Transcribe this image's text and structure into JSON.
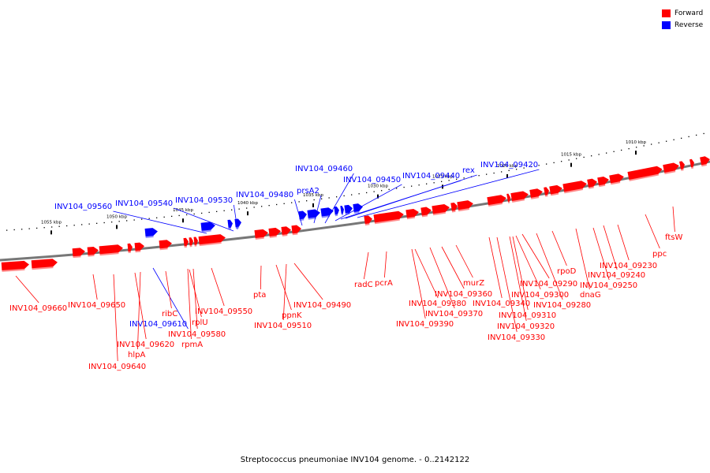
{
  "legend": [
    {
      "label": "Forward",
      "color": "#ff0000"
    },
    {
      "label": "Reverse",
      "color": "#0000ff"
    }
  ],
  "caption": "Streptococcus pneumoniae INV104 genome. - 0..2142122",
  "colors": {
    "forward": "#ff0000",
    "reverse": "#0000ff",
    "backbone": "#777777"
  },
  "scale_ticks": [
    "1055 kbp",
    "1050 kbp",
    "1045 kbp",
    "1040 kbp",
    "1035 kbp",
    "1030 kbp",
    "1025 kbp",
    "1020 kbp",
    "1015 kbp",
    "1010 kbp"
  ],
  "genes": [
    {
      "label": "INV104_09660",
      "strand": "forward"
    },
    {
      "label": "INV104_09650",
      "strand": "forward"
    },
    {
      "label": "INV104_09640",
      "strand": "forward"
    },
    {
      "label": "INV104_09620",
      "strand": "forward"
    },
    {
      "label": "hlpA",
      "strand": "forward"
    },
    {
      "label": "INV104_09610",
      "strand": "reverse"
    },
    {
      "label": "ribC",
      "strand": "forward"
    },
    {
      "label": "rplU",
      "strand": "forward"
    },
    {
      "label": "INV104_09580",
      "strand": "forward"
    },
    {
      "label": "rpmA",
      "strand": "forward"
    },
    {
      "label": "INV104_09550",
      "strand": "forward"
    },
    {
      "label": "pta",
      "strand": "forward"
    },
    {
      "label": "ppnK",
      "strand": "forward"
    },
    {
      "label": "INV104_09510",
      "strand": "forward"
    },
    {
      "label": "INV104_09490",
      "strand": "forward"
    },
    {
      "label": "radC",
      "strand": "forward"
    },
    {
      "label": "pcrA",
      "strand": "forward"
    },
    {
      "label": "INV104_09380",
      "strand": "forward"
    },
    {
      "label": "INV104_09390",
      "strand": "forward"
    },
    {
      "label": "INV104_09370",
      "strand": "forward"
    },
    {
      "label": "INV104_09360",
      "strand": "forward"
    },
    {
      "label": "murZ",
      "strand": "forward"
    },
    {
      "label": "INV104_09340",
      "strand": "forward"
    },
    {
      "label": "INV104_09330",
      "strand": "forward"
    },
    {
      "label": "INV104_09320",
      "strand": "forward"
    },
    {
      "label": "INV104_09310",
      "strand": "forward"
    },
    {
      "label": "INV104_09300",
      "strand": "forward"
    },
    {
      "label": "INV104_09290",
      "strand": "forward"
    },
    {
      "label": "INV104_09280",
      "strand": "forward"
    },
    {
      "label": "rpoD",
      "strand": "forward"
    },
    {
      "label": "dnaG",
      "strand": "forward"
    },
    {
      "label": "INV104_09250",
      "strand": "forward"
    },
    {
      "label": "INV104_09240",
      "strand": "forward"
    },
    {
      "label": "INV104_09230",
      "strand": "forward"
    },
    {
      "label": "ppc",
      "strand": "forward"
    },
    {
      "label": "ftsW",
      "strand": "forward"
    },
    {
      "label": "INV104_09560",
      "strand": "reverse"
    },
    {
      "label": "INV104_09540",
      "strand": "reverse"
    },
    {
      "label": "INV104_09530",
      "strand": "reverse"
    },
    {
      "label": "INV104_09480",
      "strand": "reverse"
    },
    {
      "label": "INV104_09460",
      "strand": "reverse"
    },
    {
      "label": "prsA2",
      "strand": "reverse"
    },
    {
      "label": "INV104_09450",
      "strand": "reverse"
    },
    {
      "label": "INV104_09440",
      "strand": "reverse"
    },
    {
      "label": "rex",
      "strand": "reverse"
    },
    {
      "label": "INV104_09420",
      "strand": "reverse"
    }
  ]
}
